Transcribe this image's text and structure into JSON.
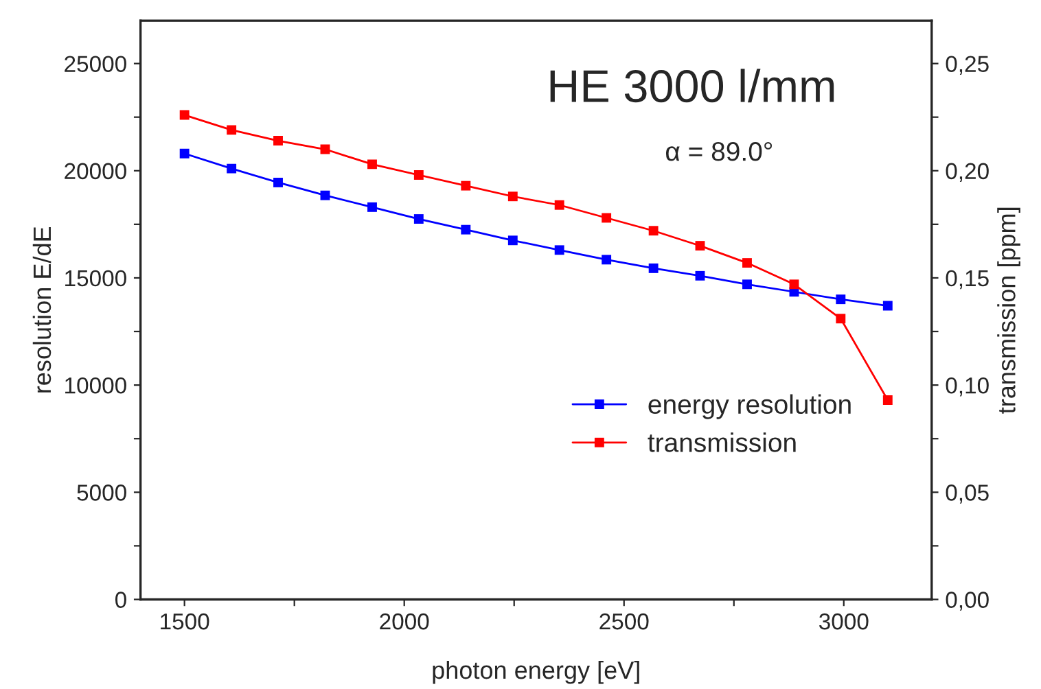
{
  "chart_data": {
    "type": "line",
    "xlabel": "photon energy [eV]",
    "ylabel": "resolution E/dE",
    "y2label": "transmission [ppm]",
    "annotations": [
      "HE 3000 l/mm",
      "α = 89.0°"
    ],
    "x": [
      1500,
      1607,
      1713,
      1820,
      1927,
      2033,
      2140,
      2247,
      2353,
      2460,
      2567,
      2673,
      2780,
      2887,
      2993,
      3100
    ],
    "series": [
      {
        "name": "energy resolution",
        "color": "#0000ff",
        "values": [
          20800,
          20100,
          19450,
          18850,
          18300,
          17750,
          17250,
          16750,
          16300,
          15850,
          15450,
          15100,
          14700,
          14350,
          14000,
          13700
        ]
      },
      {
        "name": "transmission",
        "color": "#ff0000",
        "axis": "y2",
        "values": [
          0.226,
          0.219,
          0.214,
          0.21,
          0.203,
          0.198,
          0.193,
          0.188,
          0.184,
          0.178,
          0.172,
          0.165,
          0.157,
          0.147,
          0.131,
          0.093
        ]
      }
    ],
    "xlim": [
      1400,
      3200
    ],
    "xticks": [
      1500,
      {
        "value": 1750,
        "label": null
      },
      2000,
      {
        "value": 2250,
        "label": null
      },
      2500,
      {
        "value": 2750,
        "label": null
      },
      3000
    ],
    "ylim": [
      0,
      27000
    ],
    "yticks": [
      0,
      {
        "value": 2500,
        "label": null
      },
      5000,
      {
        "value": 7500,
        "label": null
      },
      10000,
      {
        "value": 12500,
        "label": null
      },
      15000,
      {
        "value": 17500,
        "label": null
      },
      20000,
      {
        "value": 22500,
        "label": null
      },
      25000
    ],
    "y2lim": [
      0,
      0.27
    ],
    "y2ticks": [
      {
        "value": 0,
        "label": "0,00"
      },
      {
        "value": 0.025,
        "label": null
      },
      {
        "value": 0.05,
        "label": "0,05"
      },
      {
        "value": 0.075,
        "label": null
      },
      {
        "value": 0.1,
        "label": "0,10"
      },
      {
        "value": 0.125,
        "label": null
      },
      {
        "value": 0.15,
        "label": "0,15"
      },
      {
        "value": 0.175,
        "label": null
      },
      {
        "value": 0.2,
        "label": "0,20"
      },
      {
        "value": 0.225,
        "label": null
      },
      {
        "value": 0.25,
        "label": "0,25"
      }
    ],
    "marker": "square",
    "line_style": "solid",
    "grid": false,
    "legend": "center right"
  }
}
